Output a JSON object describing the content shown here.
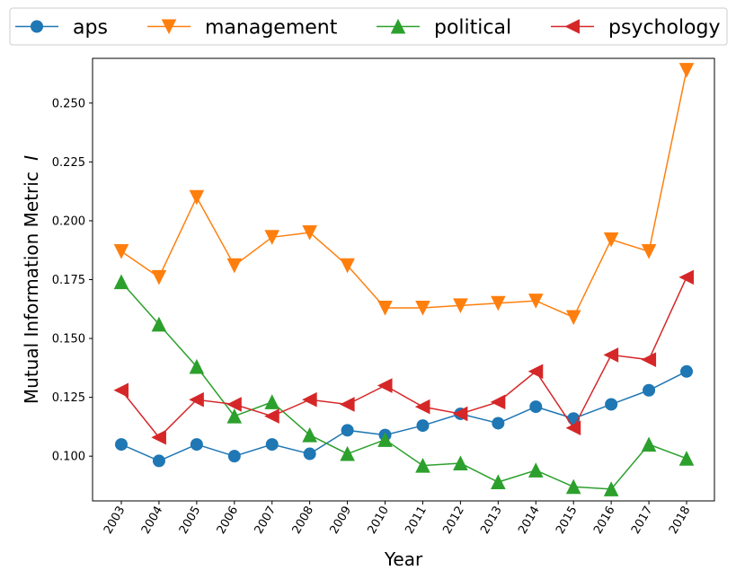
{
  "chart_data": {
    "type": "line",
    "xlabel": "Year",
    "ylabel": "Mutual Information Metric",
    "ylabel_symbol": "I",
    "categories": [
      "2003",
      "2004",
      "2005",
      "2006",
      "2007",
      "2008",
      "2009",
      "2010",
      "2011",
      "2012",
      "2013",
      "2014",
      "2015",
      "2016",
      "2017",
      "2018"
    ],
    "y_ticks": [
      "0.100",
      "0.125",
      "0.150",
      "0.175",
      "0.200",
      "0.225",
      "0.250"
    ],
    "ylim": [
      0.081,
      0.269
    ],
    "grid": false,
    "legend_position": "top, outside plot",
    "series": [
      {
        "name": "aps",
        "color": "#1f77b4",
        "marker": "circle",
        "values": [
          0.105,
          0.098,
          0.105,
          0.1,
          0.105,
          0.101,
          0.111,
          0.109,
          0.113,
          0.118,
          0.114,
          0.121,
          0.116,
          0.122,
          0.128,
          0.136
        ]
      },
      {
        "name": "management",
        "color": "#ff7f0e",
        "marker": "triangle-down",
        "values": [
          0.187,
          0.176,
          0.21,
          0.181,
          0.193,
          0.195,
          0.181,
          0.163,
          0.163,
          0.164,
          0.165,
          0.166,
          0.159,
          0.192,
          0.187,
          0.264
        ]
      },
      {
        "name": "political",
        "color": "#2ca02c",
        "marker": "triangle-up",
        "values": [
          0.174,
          0.156,
          0.138,
          0.117,
          0.123,
          0.109,
          0.101,
          0.107,
          0.096,
          0.097,
          0.089,
          0.094,
          0.087,
          0.086,
          0.105,
          0.099
        ]
      },
      {
        "name": "psychology",
        "color": "#d62728",
        "marker": "triangle-left",
        "values": [
          0.128,
          0.108,
          0.124,
          0.122,
          0.117,
          0.124,
          0.122,
          0.13,
          0.121,
          0.118,
          0.123,
          0.136,
          0.112,
          0.143,
          0.141,
          0.176
        ]
      }
    ]
  }
}
